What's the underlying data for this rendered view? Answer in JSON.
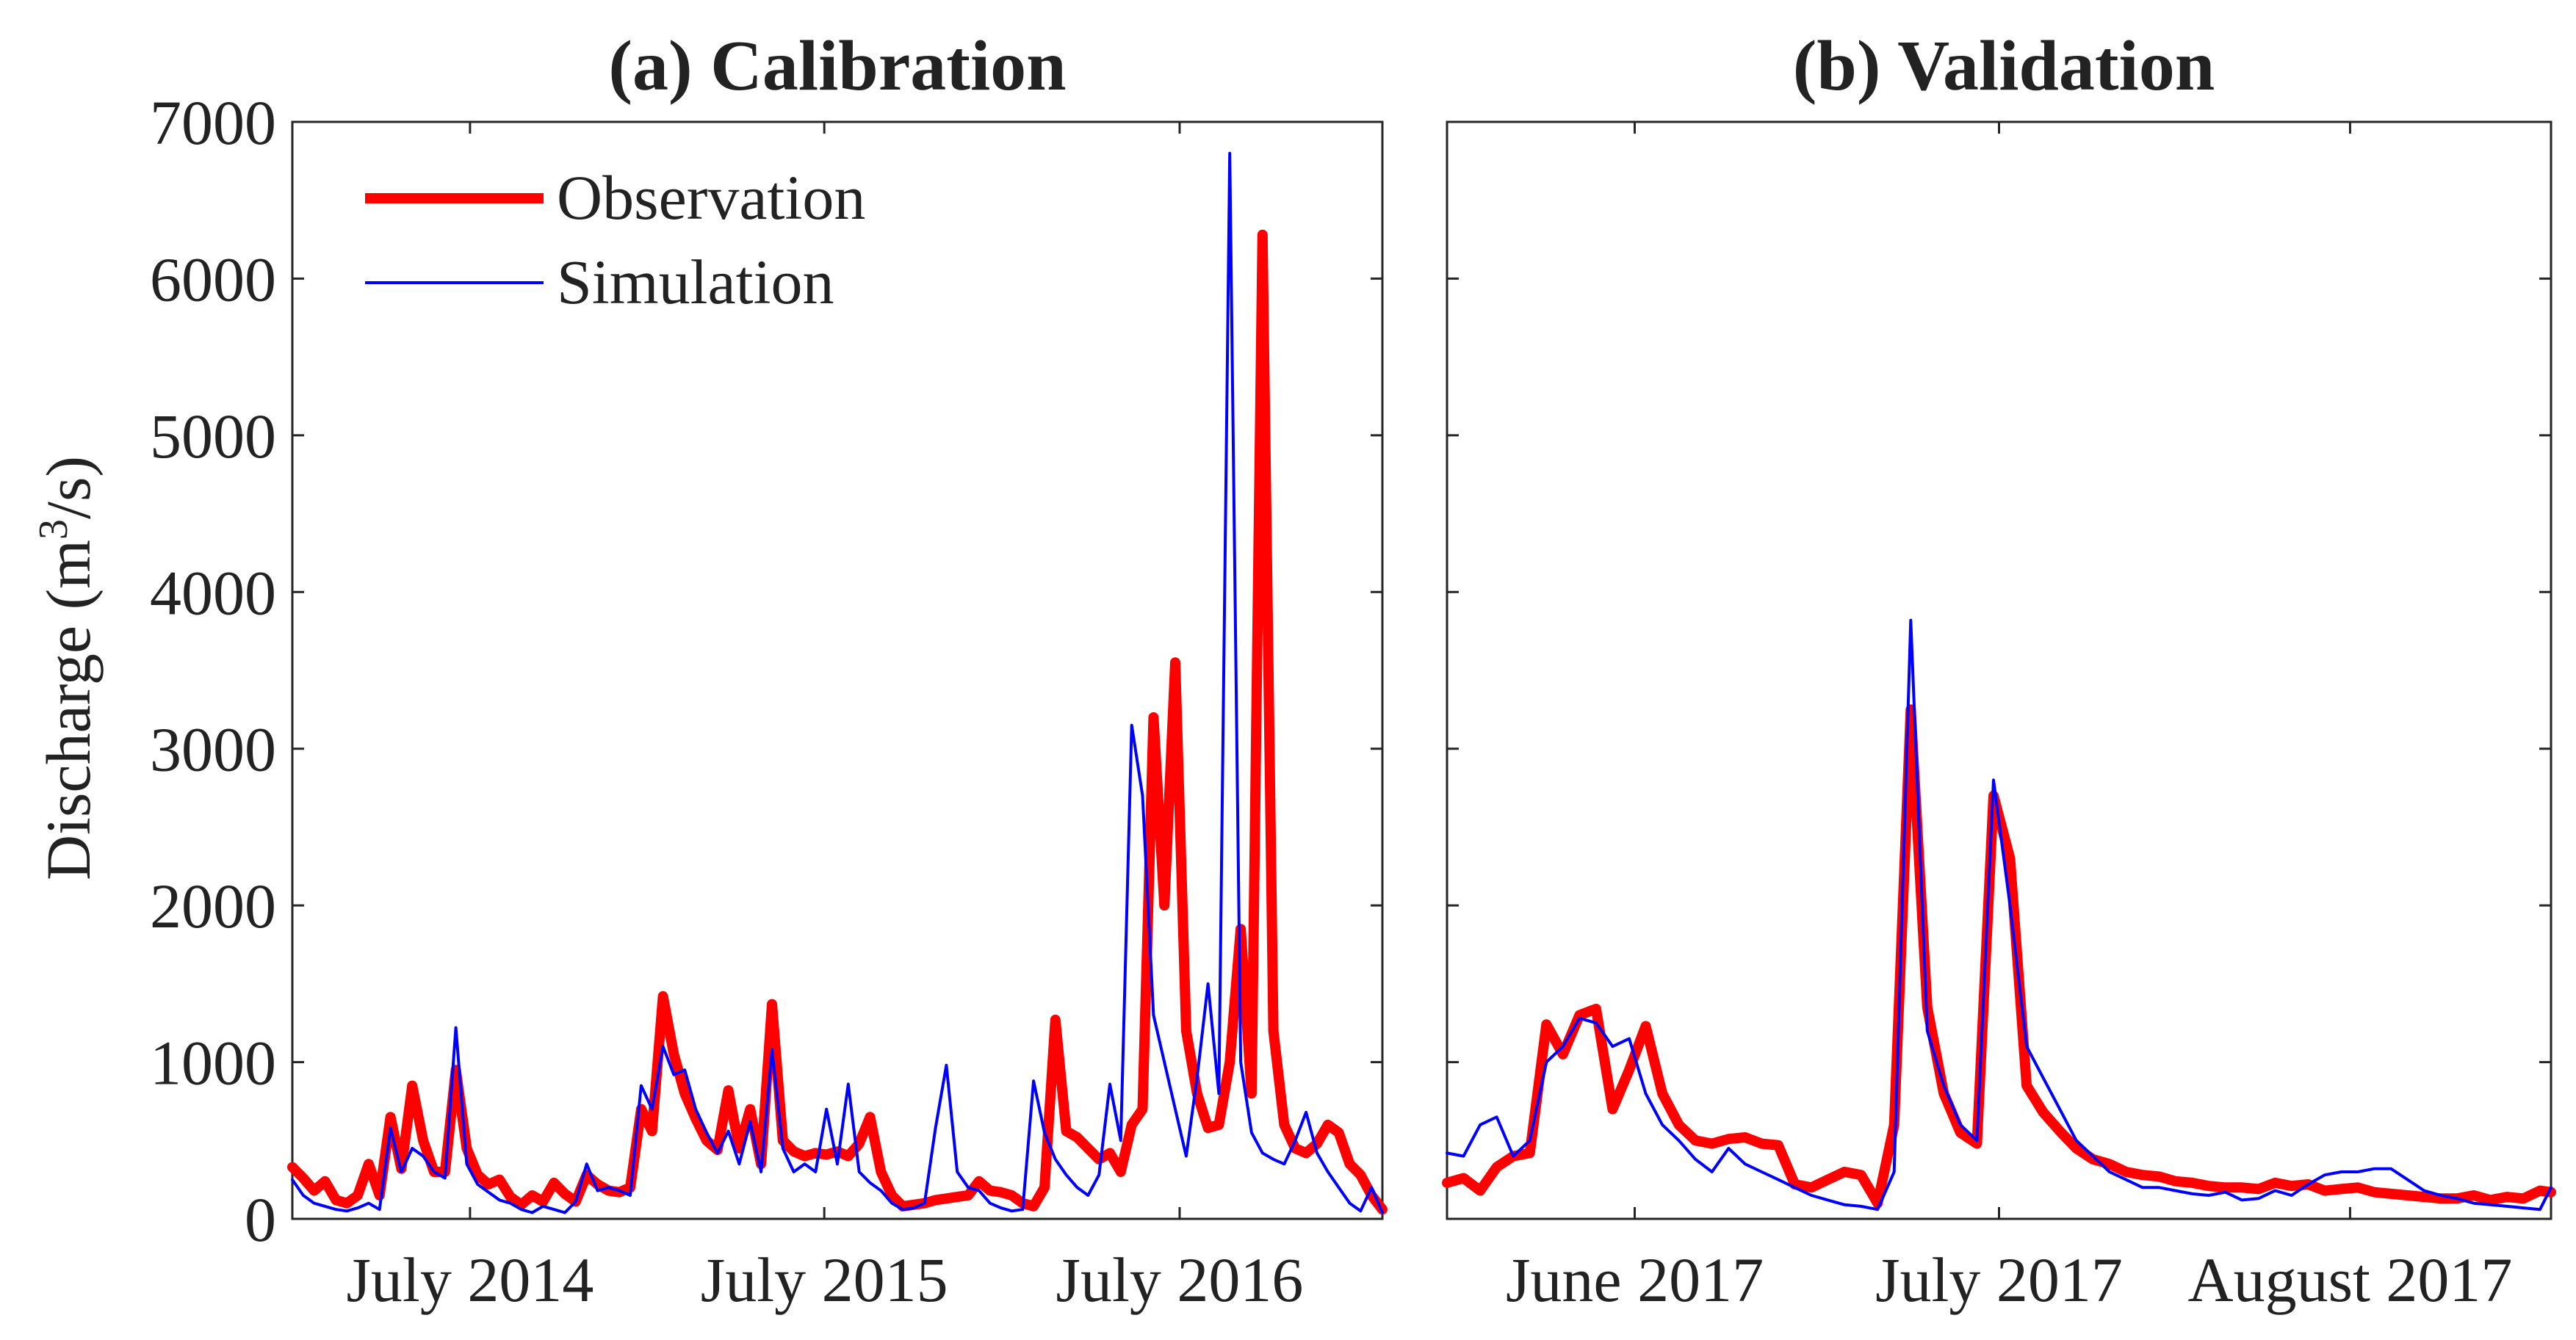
{
  "chart_data": [
    {
      "type": "line",
      "title": "(a) Calibration",
      "ylabel": "Discharge (m",
      "ylabel_sup": "3",
      "ylabel_tail": "/s)",
      "ylim": [
        0,
        7000
      ],
      "yticks": [
        0,
        1000,
        2000,
        3000,
        4000,
        5000,
        6000,
        7000
      ],
      "xlim": [
        0,
        1000
      ],
      "x_ticks": [
        {
          "label": "July 2014",
          "x": 163
        },
        {
          "label": "July 2015",
          "x": 488
        },
        {
          "label": "July 2016",
          "x": 814
        }
      ],
      "legend": {
        "position": "top-left",
        "entries": [
          "Observation",
          "Simulation"
        ]
      },
      "series": [
        {
          "name": "Observation",
          "color": "#ff0000",
          "x": [
            0,
            10,
            20,
            30,
            40,
            50,
            60,
            70,
            80,
            90,
            100,
            110,
            120,
            130,
            140,
            150,
            160,
            170,
            180,
            190,
            200,
            210,
            220,
            230,
            240,
            250,
            260,
            270,
            280,
            290,
            300,
            310,
            320,
            330,
            340,
            350,
            360,
            370,
            380,
            390,
            400,
            410,
            420,
            430,
            440,
            450,
            460,
            470,
            480,
            490,
            500,
            510,
            520,
            530,
            540,
            550,
            560,
            570,
            580,
            590,
            600,
            610,
            620,
            630,
            640,
            650,
            660,
            670,
            680,
            690,
            700,
            710,
            720,
            730,
            740,
            750,
            760,
            770,
            780,
            790,
            800,
            810,
            820,
            830,
            840,
            850,
            860,
            870,
            880,
            890,
            900,
            910,
            920,
            930,
            940,
            950,
            960,
            970,
            980,
            990,
            1000
          ],
          "values": [
            330,
            260,
            180,
            240,
            120,
            100,
            150,
            350,
            150,
            650,
            320,
            850,
            500,
            300,
            300,
            950,
            450,
            280,
            220,
            250,
            140,
            90,
            150,
            110,
            230,
            160,
            110,
            280,
            220,
            180,
            170,
            200,
            700,
            560,
            1420,
            1050,
            800,
            640,
            500,
            440,
            820,
            450,
            700,
            350,
            1370,
            500,
            430,
            400,
            420,
            410,
            430,
            400,
            480,
            650,
            300,
            150,
            80,
            90,
            100,
            120,
            130,
            140,
            150,
            240,
            180,
            170,
            150,
            100,
            80,
            200,
            1270,
            560,
            520,
            450,
            380,
            420,
            300,
            600,
            700,
            3200,
            2000,
            3550,
            1200,
            800,
            580,
            600,
            1000,
            1850,
            800,
            6280,
            1200,
            600,
            450,
            420,
            480,
            600,
            550,
            350,
            280,
            150,
            60
          ]
        },
        {
          "name": "Simulation",
          "color": "#0000ff",
          "x": [
            0,
            10,
            20,
            30,
            40,
            50,
            60,
            70,
            80,
            90,
            100,
            110,
            120,
            130,
            140,
            150,
            160,
            170,
            180,
            190,
            200,
            210,
            220,
            230,
            240,
            250,
            260,
            270,
            280,
            290,
            300,
            310,
            320,
            330,
            340,
            350,
            360,
            370,
            380,
            390,
            400,
            410,
            420,
            430,
            440,
            450,
            460,
            470,
            480,
            490,
            500,
            510,
            520,
            530,
            540,
            550,
            560,
            570,
            580,
            590,
            600,
            610,
            620,
            630,
            640,
            650,
            660,
            670,
            680,
            690,
            700,
            710,
            720,
            730,
            740,
            750,
            760,
            770,
            780,
            790,
            800,
            810,
            820,
            830,
            840,
            850,
            860,
            870,
            880,
            890,
            900,
            910,
            920,
            930,
            940,
            950,
            960,
            970,
            980,
            990,
            1000
          ],
          "values": [
            250,
            150,
            100,
            80,
            60,
            50,
            70,
            100,
            60,
            580,
            300,
            450,
            400,
            300,
            260,
            1220,
            350,
            220,
            170,
            120,
            100,
            60,
            40,
            80,
            60,
            40,
            110,
            350,
            180,
            200,
            180,
            150,
            850,
            700,
            1100,
            920,
            950,
            700,
            550,
            420,
            560,
            350,
            620,
            300,
            1080,
            450,
            300,
            350,
            300,
            700,
            350,
            860,
            300,
            230,
            180,
            100,
            60,
            70,
            100,
            580,
            980,
            300,
            200,
            180,
            100,
            70,
            50,
            60,
            880,
            550,
            380,
            280,
            200,
            150,
            280,
            860,
            500,
            3150,
            2700,
            1300,
            1000,
            700,
            400,
            900,
            1500,
            800,
            6800,
            1000,
            550,
            420,
            380,
            350,
            500,
            680,
            420,
            300,
            200,
            100,
            50,
            200,
            40
          ]
        }
      ]
    },
    {
      "type": "line",
      "title": "(b) Validation",
      "ylim": [
        0,
        7000
      ],
      "xlim": [
        0,
        1000
      ],
      "x_ticks": [
        {
          "label": "June 2017",
          "x": 170
        },
        {
          "label": "July 2017",
          "x": 500
        },
        {
          "label": "August 2017",
          "x": 818
        }
      ],
      "series": [
        {
          "name": "Observation",
          "color": "#ff0000",
          "x": [
            0,
            15,
            30,
            45,
            60,
            75,
            90,
            105,
            120,
            135,
            150,
            165,
            180,
            195,
            210,
            225,
            240,
            255,
            270,
            285,
            300,
            315,
            330,
            345,
            360,
            375,
            390,
            405,
            420,
            435,
            450,
            465,
            480,
            495,
            510,
            525,
            540,
            555,
            570,
            585,
            600,
            615,
            630,
            645,
            660,
            675,
            690,
            705,
            720,
            735,
            750,
            765,
            780,
            795,
            810,
            825,
            840,
            855,
            870,
            885,
            900,
            915,
            930,
            945,
            960,
            975,
            990,
            1000
          ],
          "values": [
            230,
            260,
            180,
            330,
            400,
            420,
            1240,
            1050,
            1300,
            1340,
            700,
            950,
            1230,
            800,
            600,
            500,
            480,
            510,
            520,
            480,
            470,
            220,
            200,
            250,
            300,
            280,
            100,
            600,
            3250,
            1350,
            800,
            550,
            480,
            2700,
            2300,
            850,
            680,
            560,
            450,
            380,
            350,
            300,
            280,
            270,
            240,
            230,
            210,
            200,
            200,
            190,
            230,
            210,
            220,
            180,
            190,
            200,
            170,
            160,
            150,
            140,
            130,
            130,
            150,
            120,
            140,
            130,
            180,
            170
          ]
        },
        {
          "name": "Simulation",
          "color": "#0000ff",
          "x": [
            0,
            15,
            30,
            45,
            60,
            75,
            90,
            105,
            120,
            135,
            150,
            165,
            180,
            195,
            210,
            225,
            240,
            255,
            270,
            285,
            300,
            315,
            330,
            345,
            360,
            375,
            390,
            405,
            420,
            435,
            450,
            465,
            480,
            495,
            510,
            525,
            540,
            555,
            570,
            585,
            600,
            615,
            630,
            645,
            660,
            675,
            690,
            705,
            720,
            735,
            750,
            765,
            780,
            795,
            810,
            825,
            840,
            855,
            870,
            885,
            900,
            915,
            930,
            945,
            960,
            975,
            990,
            1000
          ],
          "values": [
            420,
            400,
            600,
            650,
            400,
            500,
            1000,
            1100,
            1280,
            1250,
            1100,
            1150,
            800,
            600,
            500,
            380,
            300,
            450,
            350,
            300,
            250,
            200,
            150,
            120,
            90,
            80,
            60,
            300,
            3820,
            1200,
            850,
            600,
            500,
            2800,
            2000,
            1100,
            900,
            700,
            500,
            400,
            300,
            250,
            200,
            200,
            180,
            160,
            150,
            170,
            120,
            130,
            180,
            150,
            220,
            280,
            300,
            300,
            320,
            320,
            250,
            180,
            150,
            130,
            100,
            90,
            80,
            70,
            60,
            200
          ]
        }
      ]
    }
  ]
}
